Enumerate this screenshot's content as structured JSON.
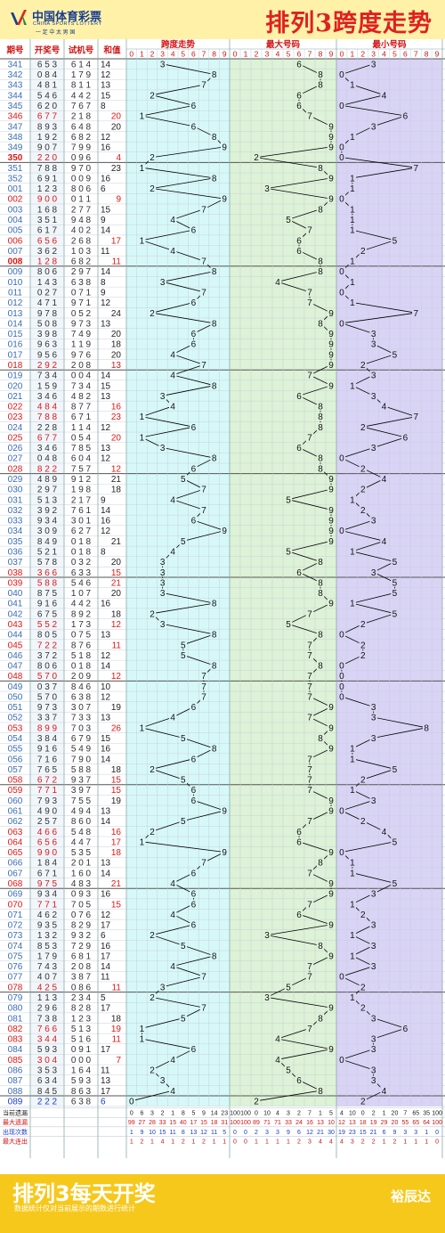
{
  "header": {
    "logo_cn": "中国体育彩票",
    "logo_en": "CHINA SPORTS LOTTERY",
    "logo_slogan": "一 定 中 太 男 国",
    "title": "排列3跨度走势"
  },
  "columns": {
    "issue": "期号",
    "draw": "开奖号",
    "trial": "试机号",
    "sum": "和值",
    "span": "跨度走势",
    "max": "最大号码",
    "min": "最小号码"
  },
  "digits": [
    "0",
    "1",
    "2",
    "3",
    "4",
    "5",
    "6",
    "7",
    "8",
    "9"
  ],
  "chart_data": {
    "type": "table",
    "rows": [
      {
        "issue": "341",
        "draw": "653",
        "trial": "614",
        "sum": 14,
        "span": 3,
        "max": 6,
        "min": 3
      },
      {
        "issue": "342",
        "draw": "084",
        "trial": "179",
        "sum": 12,
        "span": 8,
        "max": 8,
        "min": 0
      },
      {
        "issue": "343",
        "draw": "481",
        "trial": "811",
        "sum": 13,
        "span": 7,
        "max": 8,
        "min": 1
      },
      {
        "issue": "344",
        "draw": "546",
        "trial": "442",
        "sum": 15,
        "span": 2,
        "max": 6,
        "min": 4
      },
      {
        "issue": "345",
        "draw": "620",
        "trial": "767",
        "sum": 8,
        "span": 6,
        "max": 6,
        "min": 0
      },
      {
        "issue": "346",
        "draw": "677",
        "trial": "218",
        "sum": 20,
        "span": 1,
        "max": 7,
        "min": 6
      },
      {
        "issue": "347",
        "draw": "893",
        "trial": "648",
        "sum": 20,
        "span": 6,
        "max": 9,
        "min": 3
      },
      {
        "issue": "348",
        "draw": "192",
        "trial": "682",
        "sum": 12,
        "span": 8,
        "max": 9,
        "min": 1
      },
      {
        "issue": "349",
        "draw": "907",
        "trial": "799",
        "sum": 16,
        "span": 9,
        "max": 9,
        "min": 0
      },
      {
        "issue": "350",
        "draw": "220",
        "trial": "096",
        "sum": 4,
        "span": 2,
        "max": 2,
        "min": 0
      },
      {
        "issue": "351",
        "draw": "788",
        "trial": "970",
        "sum": 23,
        "span": 1,
        "max": 8,
        "min": 7
      },
      {
        "issue": "352",
        "draw": "691",
        "trial": "009",
        "sum": 16,
        "span": 8,
        "max": 9,
        "min": 1
      },
      {
        "issue": "001",
        "draw": "123",
        "trial": "806",
        "sum": 6,
        "span": 2,
        "max": 3,
        "min": 1
      },
      {
        "issue": "002",
        "draw": "900",
        "trial": "011",
        "sum": 9,
        "span": 9,
        "max": 9,
        "min": 0
      },
      {
        "issue": "003",
        "draw": "168",
        "trial": "277",
        "sum": 15,
        "span": 7,
        "max": 8,
        "min": 1
      },
      {
        "issue": "004",
        "draw": "351",
        "trial": "948",
        "sum": 9,
        "span": 4,
        "max": 5,
        "min": 1
      },
      {
        "issue": "005",
        "draw": "617",
        "trial": "402",
        "sum": 14,
        "span": 6,
        "max": 7,
        "min": 1
      },
      {
        "issue": "006",
        "draw": "656",
        "trial": "268",
        "sum": 17,
        "span": 1,
        "max": 6,
        "min": 5
      },
      {
        "issue": "007",
        "draw": "362",
        "trial": "103",
        "sum": 11,
        "span": 4,
        "max": 6,
        "min": 2
      },
      {
        "issue": "008",
        "draw": "128",
        "trial": "682",
        "sum": 11,
        "span": 7,
        "max": 8,
        "min": 1
      },
      {
        "issue": "009",
        "draw": "806",
        "trial": "297",
        "sum": 14,
        "span": 8,
        "max": 8,
        "min": 0
      },
      {
        "issue": "010",
        "draw": "143",
        "trial": "638",
        "sum": 8,
        "span": 3,
        "max": 4,
        "min": 1
      },
      {
        "issue": "011",
        "draw": "027",
        "trial": "071",
        "sum": 9,
        "span": 7,
        "max": 7,
        "min": 0
      },
      {
        "issue": "012",
        "draw": "471",
        "trial": "971",
        "sum": 12,
        "span": 6,
        "max": 7,
        "min": 1
      },
      {
        "issue": "013",
        "draw": "978",
        "trial": "052",
        "sum": 24,
        "span": 2,
        "max": 9,
        "min": 7
      },
      {
        "issue": "014",
        "draw": "508",
        "trial": "973",
        "sum": 13,
        "span": 8,
        "max": 8,
        "min": 0
      },
      {
        "issue": "015",
        "draw": "398",
        "trial": "749",
        "sum": 20,
        "span": 6,
        "max": 9,
        "min": 3
      },
      {
        "issue": "016",
        "draw": "963",
        "trial": "119",
        "sum": 18,
        "span": 6,
        "max": 9,
        "min": 3
      },
      {
        "issue": "017",
        "draw": "956",
        "trial": "976",
        "sum": 20,
        "span": 4,
        "max": 9,
        "min": 5
      },
      {
        "issue": "018",
        "draw": "292",
        "trial": "208",
        "sum": 13,
        "span": 7,
        "max": 9,
        "min": 2
      },
      {
        "issue": "019",
        "draw": "734",
        "trial": "004",
        "sum": 14,
        "span": 4,
        "max": 7,
        "min": 3
      },
      {
        "issue": "020",
        "draw": "159",
        "trial": "734",
        "sum": 15,
        "span": 8,
        "max": 9,
        "min": 1
      },
      {
        "issue": "021",
        "draw": "346",
        "trial": "482",
        "sum": 13,
        "span": 3,
        "max": 6,
        "min": 3
      },
      {
        "issue": "022",
        "draw": "484",
        "trial": "877",
        "sum": 16,
        "span": 4,
        "max": 8,
        "min": 4
      },
      {
        "issue": "023",
        "draw": "788",
        "trial": "671",
        "sum": 23,
        "span": 1,
        "max": 8,
        "min": 7
      },
      {
        "issue": "024",
        "draw": "228",
        "trial": "114",
        "sum": 12,
        "span": 6,
        "max": 8,
        "min": 2
      },
      {
        "issue": "025",
        "draw": "677",
        "trial": "054",
        "sum": 20,
        "span": 1,
        "max": 7,
        "min": 6
      },
      {
        "issue": "026",
        "draw": "346",
        "trial": "785",
        "sum": 13,
        "span": 3,
        "max": 6,
        "min": 3
      },
      {
        "issue": "027",
        "draw": "048",
        "trial": "604",
        "sum": 12,
        "span": 8,
        "max": 8,
        "min": 0
      },
      {
        "issue": "028",
        "draw": "822",
        "trial": "757",
        "sum": 12,
        "span": 6,
        "max": 8,
        "min": 2
      },
      {
        "issue": "029",
        "draw": "489",
        "trial": "912",
        "sum": 21,
        "span": 5,
        "max": 9,
        "min": 4
      },
      {
        "issue": "030",
        "draw": "297",
        "trial": "198",
        "sum": 18,
        "span": 7,
        "max": 9,
        "min": 2
      },
      {
        "issue": "031",
        "draw": "513",
        "trial": "217",
        "sum": 9,
        "span": 4,
        "max": 5,
        "min": 1
      },
      {
        "issue": "032",
        "draw": "392",
        "trial": "761",
        "sum": 14,
        "span": 7,
        "max": 9,
        "min": 2
      },
      {
        "issue": "033",
        "draw": "934",
        "trial": "301",
        "sum": 16,
        "span": 6,
        "max": 9,
        "min": 3
      },
      {
        "issue": "034",
        "draw": "309",
        "trial": "627",
        "sum": 12,
        "span": 9,
        "max": 9,
        "min": 0
      },
      {
        "issue": "035",
        "draw": "849",
        "trial": "018",
        "sum": 21,
        "span": 5,
        "max": 9,
        "min": 4
      },
      {
        "issue": "036",
        "draw": "521",
        "trial": "018",
        "sum": 8,
        "span": 4,
        "max": 5,
        "min": 1
      },
      {
        "issue": "037",
        "draw": "578",
        "trial": "032",
        "sum": 20,
        "span": 3,
        "max": 8,
        "min": 5
      },
      {
        "issue": "038",
        "draw": "366",
        "trial": "633",
        "sum": 15,
        "span": 3,
        "max": 6,
        "min": 3
      },
      {
        "issue": "039",
        "draw": "588",
        "trial": "546",
        "sum": 21,
        "span": 3,
        "max": 8,
        "min": 5
      },
      {
        "issue": "040",
        "draw": "875",
        "trial": "107",
        "sum": 20,
        "span": 3,
        "max": 8,
        "min": 5
      },
      {
        "issue": "041",
        "draw": "916",
        "trial": "442",
        "sum": 16,
        "span": 8,
        "max": 9,
        "min": 1
      },
      {
        "issue": "042",
        "draw": "675",
        "trial": "892",
        "sum": 18,
        "span": 2,
        "max": 7,
        "min": 5
      },
      {
        "issue": "043",
        "draw": "552",
        "trial": "173",
        "sum": 12,
        "span": 3,
        "max": 5,
        "min": 2
      },
      {
        "issue": "044",
        "draw": "805",
        "trial": "075",
        "sum": 13,
        "span": 8,
        "max": 8,
        "min": 0
      },
      {
        "issue": "045",
        "draw": "722",
        "trial": "876",
        "sum": 11,
        "span": 5,
        "max": 7,
        "min": 2
      },
      {
        "issue": "046",
        "draw": "372",
        "trial": "518",
        "sum": 12,
        "span": 5,
        "max": 7,
        "min": 2
      },
      {
        "issue": "047",
        "draw": "806",
        "trial": "018",
        "sum": 14,
        "span": 8,
        "max": 8,
        "min": 0
      },
      {
        "issue": "048",
        "draw": "570",
        "trial": "209",
        "sum": 12,
        "span": 7,
        "max": 7,
        "min": 0
      },
      {
        "issue": "049",
        "draw": "037",
        "trial": "846",
        "sum": 10,
        "span": 7,
        "max": 7,
        "min": 0
      },
      {
        "issue": "050",
        "draw": "570",
        "trial": "638",
        "sum": 12,
        "span": 7,
        "max": 7,
        "min": 0
      },
      {
        "issue": "051",
        "draw": "973",
        "trial": "307",
        "sum": 19,
        "span": 6,
        "max": 9,
        "min": 3
      },
      {
        "issue": "052",
        "draw": "337",
        "trial": "733",
        "sum": 13,
        "span": 4,
        "max": 7,
        "min": 3
      },
      {
        "issue": "053",
        "draw": "899",
        "trial": "703",
        "sum": 26,
        "span": 1,
        "max": 9,
        "min": 8
      },
      {
        "issue": "054",
        "draw": "384",
        "trial": "679",
        "sum": 15,
        "span": 5,
        "max": 8,
        "min": 3
      },
      {
        "issue": "055",
        "draw": "916",
        "trial": "549",
        "sum": 16,
        "span": 8,
        "max": 9,
        "min": 1
      },
      {
        "issue": "056",
        "draw": "716",
        "trial": "790",
        "sum": 14,
        "span": 6,
        "max": 7,
        "min": 1
      },
      {
        "issue": "057",
        "draw": "765",
        "trial": "588",
        "sum": 18,
        "span": 2,
        "max": 7,
        "min": 5
      },
      {
        "issue": "058",
        "draw": "672",
        "trial": "937",
        "sum": 15,
        "span": 5,
        "max": 7,
        "min": 2
      },
      {
        "issue": "059",
        "draw": "771",
        "trial": "397",
        "sum": 15,
        "span": 6,
        "max": 7,
        "min": 1
      },
      {
        "issue": "060",
        "draw": "793",
        "trial": "755",
        "sum": 19,
        "span": 6,
        "max": 9,
        "min": 3
      },
      {
        "issue": "061",
        "draw": "490",
        "trial": "494",
        "sum": 13,
        "span": 9,
        "max": 9,
        "min": 0
      },
      {
        "issue": "062",
        "draw": "257",
        "trial": "860",
        "sum": 14,
        "span": 5,
        "max": 7,
        "min": 2
      },
      {
        "issue": "063",
        "draw": "466",
        "trial": "548",
        "sum": 16,
        "span": 2,
        "max": 6,
        "min": 4
      },
      {
        "issue": "064",
        "draw": "656",
        "trial": "447",
        "sum": 17,
        "span": 1,
        "max": 6,
        "min": 5
      },
      {
        "issue": "065",
        "draw": "990",
        "trial": "535",
        "sum": 18,
        "span": 9,
        "max": 9,
        "min": 0
      },
      {
        "issue": "066",
        "draw": "184",
        "trial": "201",
        "sum": 13,
        "span": 7,
        "max": 8,
        "min": 1
      },
      {
        "issue": "067",
        "draw": "671",
        "trial": "160",
        "sum": 14,
        "span": 6,
        "max": 7,
        "min": 1
      },
      {
        "issue": "068",
        "draw": "975",
        "trial": "483",
        "sum": 21,
        "span": 4,
        "max": 9,
        "min": 5
      },
      {
        "issue": "069",
        "draw": "934",
        "trial": "093",
        "sum": 16,
        "span": 6,
        "max": 9,
        "min": 3
      },
      {
        "issue": "070",
        "draw": "771",
        "trial": "705",
        "sum": 15,
        "span": 6,
        "max": 7,
        "min": 1
      },
      {
        "issue": "071",
        "draw": "462",
        "trial": "076",
        "sum": 12,
        "span": 4,
        "max": 6,
        "min": 2
      },
      {
        "issue": "072",
        "draw": "935",
        "trial": "829",
        "sum": 17,
        "span": 6,
        "max": 9,
        "min": 3
      },
      {
        "issue": "073",
        "draw": "132",
        "trial": "932",
        "sum": 6,
        "span": 2,
        "max": 3,
        "min": 1
      },
      {
        "issue": "074",
        "draw": "853",
        "trial": "729",
        "sum": 16,
        "span": 5,
        "max": 8,
        "min": 3
      },
      {
        "issue": "075",
        "draw": "179",
        "trial": "681",
        "sum": 17,
        "span": 8,
        "max": 9,
        "min": 1
      },
      {
        "issue": "076",
        "draw": "743",
        "trial": "208",
        "sum": 14,
        "span": 4,
        "max": 7,
        "min": 3
      },
      {
        "issue": "077",
        "draw": "407",
        "trial": "387",
        "sum": 11,
        "span": 7,
        "max": 7,
        "min": 0
      },
      {
        "issue": "078",
        "draw": "425",
        "trial": "086",
        "sum": 11,
        "span": 3,
        "max": 5,
        "min": 2
      },
      {
        "issue": "079",
        "draw": "113",
        "trial": "234",
        "sum": 5,
        "span": 2,
        "max": 3,
        "min": 1
      },
      {
        "issue": "080",
        "draw": "296",
        "trial": "828",
        "sum": 17,
        "span": 7,
        "max": 9,
        "min": 2
      },
      {
        "issue": "081",
        "draw": "738",
        "trial": "123",
        "sum": 18,
        "span": 5,
        "max": 8,
        "min": 3
      },
      {
        "issue": "082",
        "draw": "766",
        "trial": "513",
        "sum": 19,
        "span": 1,
        "max": 7,
        "min": 6
      },
      {
        "issue": "083",
        "draw": "344",
        "trial": "516",
        "sum": 11,
        "span": 1,
        "max": 4,
        "min": 3
      },
      {
        "issue": "084",
        "draw": "593",
        "trial": "091",
        "sum": 17,
        "span": 6,
        "max": 9,
        "min": 3
      },
      {
        "issue": "085",
        "draw": "304",
        "trial": "000",
        "sum": 7,
        "span": 4,
        "max": 4,
        "min": 0
      },
      {
        "issue": "086",
        "draw": "353",
        "trial": "164",
        "sum": 11,
        "span": 2,
        "max": 5,
        "min": 3
      },
      {
        "issue": "087",
        "draw": "634",
        "trial": "593",
        "sum": 13,
        "span": 3,
        "max": 6,
        "min": 3
      },
      {
        "issue": "088",
        "draw": "845",
        "trial": "863",
        "sum": 17,
        "span": 4,
        "max": 8,
        "min": 4
      },
      {
        "issue": "089",
        "draw": "222",
        "trial": "638",
        "sum": 6,
        "span": 0,
        "max": 2,
        "min": 2
      }
    ],
    "red_draw_issues": [
      "346",
      "350",
      "002",
      "006",
      "008",
      "018",
      "022",
      "023",
      "025",
      "028",
      "038",
      "039",
      "043",
      "045",
      "048",
      "053",
      "058",
      "059",
      "063",
      "064",
      "065",
      "068",
      "070",
      "078",
      "082",
      "083",
      "085"
    ],
    "stats": [
      {
        "label": "当前遗漏",
        "span": [
          "0",
          "6",
          "3",
          "2",
          "1",
          "8",
          "5",
          "9",
          "14",
          "23"
        ],
        "max": [
          "100",
          "100",
          "0",
          "10",
          "4",
          "3",
          "2",
          "7",
          "1",
          "5"
        ],
        "min": [
          "4",
          "10",
          "0",
          "2",
          "1",
          "20",
          "7",
          "65",
          "35",
          "100"
        ]
      },
      {
        "label": "最大遗漏",
        "span": [
          "99",
          "27",
          "28",
          "33",
          "15",
          "40",
          "17",
          "15",
          "18",
          "31"
        ],
        "max": [
          "100",
          "100",
          "89",
          "71",
          "71",
          "33",
          "24",
          "16",
          "13",
          "10"
        ],
        "min": [
          "12",
          "13",
          "18",
          "19",
          "29",
          "20",
          "55",
          "65",
          "64",
          "100"
        ]
      },
      {
        "label": "出现次数",
        "span": [
          "1",
          "9",
          "10",
          "15",
          "11",
          "8",
          "13",
          "12",
          "11",
          "5"
        ],
        "max": [
          "0",
          "0",
          "2",
          "3",
          "3",
          "9",
          "6",
          "12",
          "21",
          "30"
        ],
        "min": [
          "19",
          "23",
          "15",
          "21",
          "6",
          "9",
          "3",
          "3",
          "1",
          "0"
        ]
      },
      {
        "label": "最大连出",
        "span": [
          "1",
          "2",
          "1",
          "4",
          "1",
          "2",
          "1",
          "2",
          "1",
          "1"
        ],
        "max": [
          "0",
          "0",
          "1",
          "1",
          "1",
          "1",
          "2",
          "3",
          "4",
          "4"
        ],
        "min": [
          "4",
          "3",
          "2",
          "2",
          "1",
          "2",
          "1",
          "1",
          "1",
          "0"
        ]
      }
    ]
  },
  "footer": {
    "title": "排列3每天开奖",
    "subtitle": "数据统计仅对当前展示的期数进行统计",
    "brand": "裕辰达"
  }
}
